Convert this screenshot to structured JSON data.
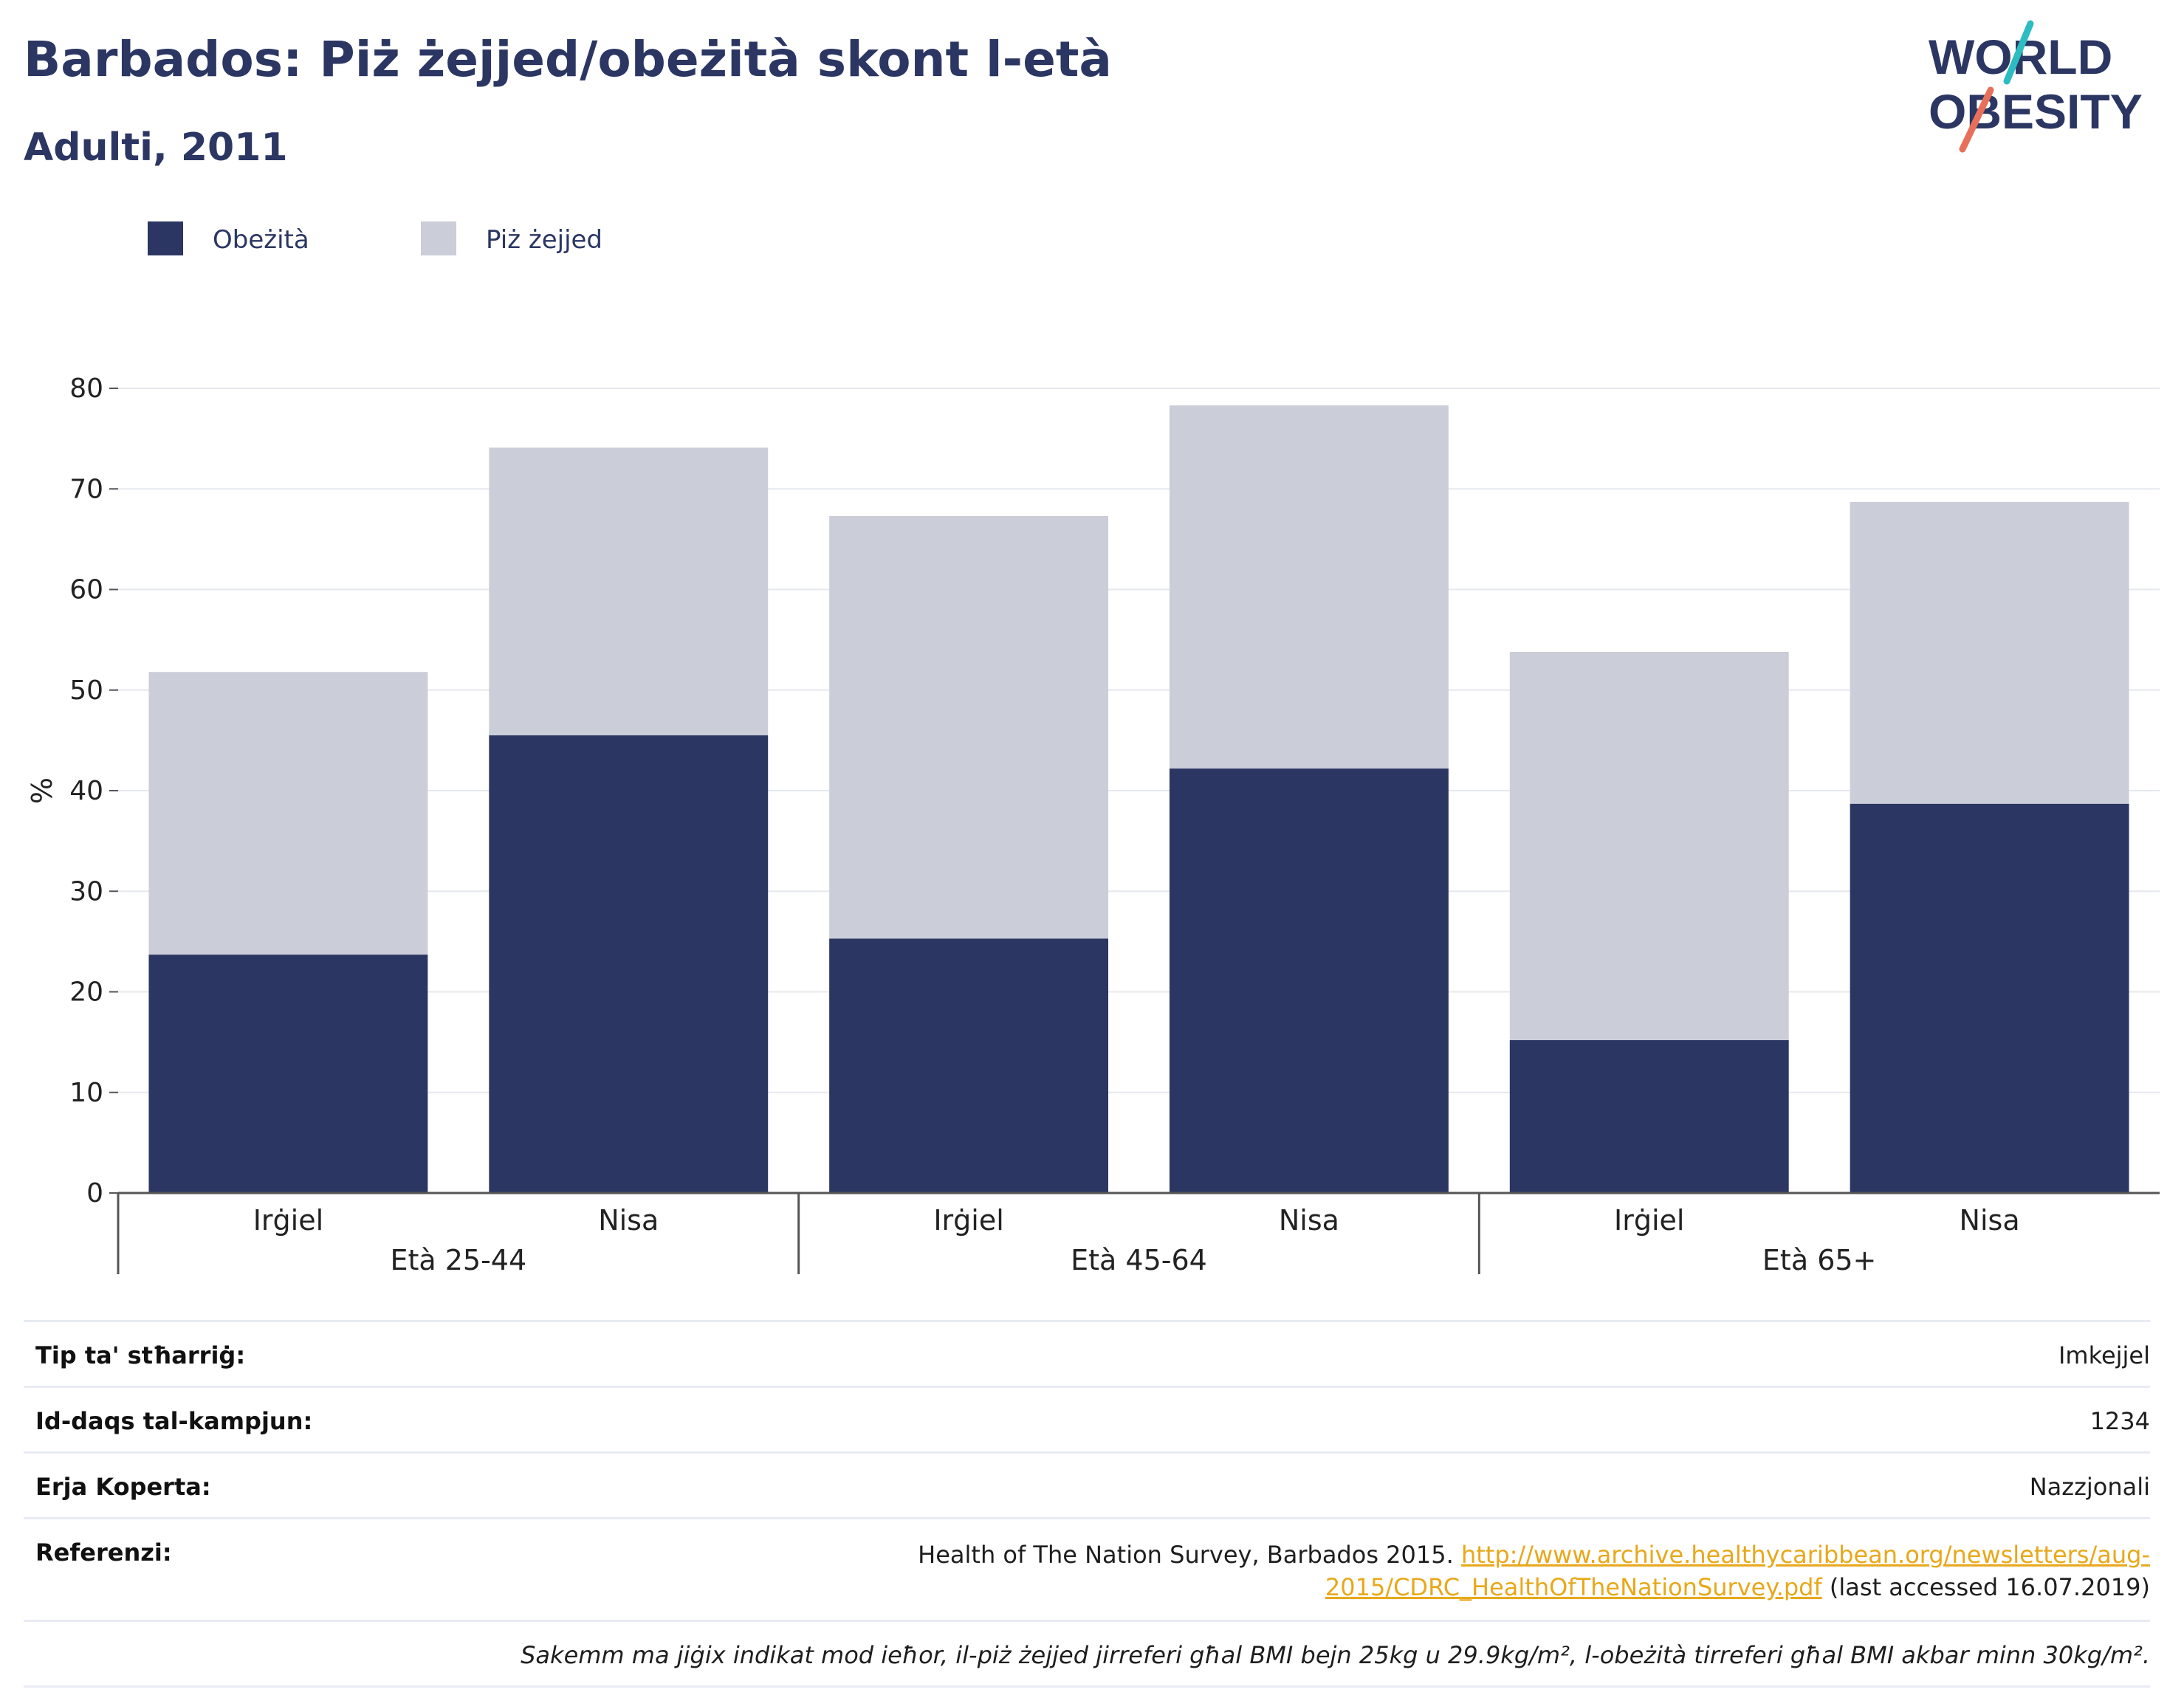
{
  "header": {
    "title": "Barbados: Piż żejjed/obeżità skont l-età",
    "subtitle": "Adulti, 2011"
  },
  "logo": {
    "line1": "WORLD",
    "line2": "OBESITY",
    "accent_teal": "#2dbcc1",
    "accent_coral": "#e8705a"
  },
  "colors": {
    "obesity": "#2b3663",
    "overweight": "#cbcdd8",
    "text": "#2b3663"
  },
  "chart_data": {
    "type": "bar",
    "stacked": true,
    "ylabel": "%",
    "ylim": [
      0,
      80
    ],
    "yticks": [
      0,
      10,
      20,
      30,
      40,
      50,
      60,
      70,
      80
    ],
    "grid": true,
    "legend_position": "top-left",
    "groups": [
      "Età 25-44",
      "Età 45-64",
      "Età 65+"
    ],
    "categories": [
      "Irġiel",
      "Nisa",
      "Irġiel",
      "Nisa",
      "Irġiel",
      "Nisa"
    ],
    "category_group": [
      0,
      0,
      1,
      1,
      2,
      2
    ],
    "series": [
      {
        "name": "Obeżità",
        "values": [
          23.7,
          45.5,
          25.3,
          42.2,
          15.2,
          38.7
        ]
      },
      {
        "name": "Piż żejjed",
        "values": [
          28.1,
          28.6,
          42.0,
          36.1,
          38.6,
          30.0
        ]
      }
    ]
  },
  "info": {
    "rows": [
      {
        "label": "Tip ta' stħarriġ:",
        "value": "Imkejjel"
      },
      {
        "label": "Id-daqs tal-kampjun:",
        "value": "1234"
      },
      {
        "label": "Erja Koperta:",
        "value": "Nazzjonali"
      }
    ],
    "reference": {
      "label": "Referenzi:",
      "text_before": "Health of The Nation Survey, Barbados 2015.",
      "link_line1": "http://www.archive.healthycaribbean.org/newsletters/aug-",
      "link_line2": "2015/CDRC_HealthOfTheNationSurvey.pdf",
      "text_after": "(last accessed 16.07.2019)"
    },
    "note": "Sakemm ma jiġix indikat mod ieħor, il-piż żejjed jirreferi għal BMI bejn 25kg u 29.9kg/m², l-obeżità tirreferi għal BMI akbar minn 30kg/m²."
  }
}
